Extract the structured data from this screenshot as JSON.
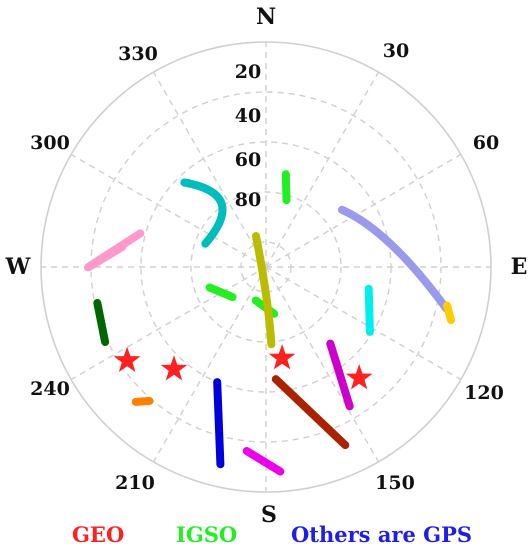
{
  "chart_data": {
    "type": "skyplot",
    "radial_axis": {
      "quantity": "elevation",
      "range": [
        0,
        90
      ],
      "tick_labels": [
        "20",
        "40",
        "60",
        "80"
      ]
    },
    "angular_axis": {
      "quantity": "azimuth",
      "cardinal_labels": [
        "N",
        "E",
        "S",
        "W"
      ],
      "tick_labels": [
        "30",
        "60",
        "120",
        "150",
        "210",
        "240",
        "300",
        "330"
      ]
    },
    "grid": true,
    "legend": [
      {
        "text": "GEO",
        "color": "#ff2020"
      },
      {
        "text": "IGSO",
        "color": "#22ee22"
      },
      {
        "text": "Others are GPS",
        "color": "#1e1ee6"
      }
    ],
    "tracks": [
      {
        "type": "GEO",
        "az": 236,
        "el": 23
      },
      {
        "type": "GEO",
        "az": 222,
        "el": 35
      },
      {
        "type": "GEO",
        "az": 170,
        "el": 53
      },
      {
        "type": "GEO",
        "az": 140,
        "el": 32
      },
      {
        "type": "IGSO",
        "color": "#22ee22",
        "points": [
          [
            17,
            62
          ],
          [
            12,
            52
          ]
        ]
      },
      {
        "type": "IGSO",
        "color": "#22ee22",
        "points": [
          [
            250,
            66
          ],
          [
            228,
            72
          ]
        ]
      },
      {
        "type": "IGSO",
        "color": "#22ee22",
        "points": [
          [
            170,
            71
          ],
          [
            197,
            76
          ]
        ]
      },
      {
        "type": "GPS",
        "color": "#ff99cc",
        "points": [
          [
            285,
            38
          ],
          [
            270,
            19
          ],
          [
            278,
            32
          ]
        ]
      },
      {
        "type": "GPS",
        "color": "#00bdbd",
        "points": [
          [
            316,
            43
          ],
          [
            325,
            59
          ],
          [
            291,
            64
          ]
        ]
      },
      {
        "type": "GPS",
        "color": "#bbbb00",
        "points": [
          [
            342,
            77
          ],
          [
            180,
            79
          ],
          [
            176,
            59
          ]
        ]
      },
      {
        "type": "GPS",
        "color": "#9999ee",
        "points": [
          [
            53,
            52
          ],
          [
            80,
            39
          ],
          [
            103,
            16
          ]
        ]
      },
      {
        "type": "GPS",
        "color": "#ffcc00",
        "points": [
          [
            102,
            16
          ],
          [
            106,
            13
          ]
        ]
      },
      {
        "type": "GPS",
        "color": "#00eeee",
        "points": [
          [
            102,
            48
          ],
          [
            122,
            41
          ]
        ]
      },
      {
        "type": "GPS",
        "color": "#006600",
        "points": [
          [
            258,
            21
          ],
          [
            245,
            19
          ]
        ]
      },
      {
        "type": "GPS",
        "color": "#ff7f00",
        "points": [
          [
            224,
            15
          ],
          [
            221,
            19
          ]
        ]
      },
      {
        "type": "GPS",
        "color": "#cc00cc",
        "points": [
          [
            140,
            50
          ],
          [
            149,
            25
          ]
        ]
      },
      {
        "type": "GPS",
        "color": "#ee00ee",
        "points": [
          [
            186,
            16
          ],
          [
            176,
            8
          ]
        ]
      },
      {
        "type": "GPS",
        "color": "#0000dd",
        "points": [
          [
            203,
            40
          ],
          [
            193,
            9
          ]
        ]
      },
      {
        "type": "GPS",
        "color": "#aa2200",
        "points": [
          [
            175,
            45
          ],
          [
            156,
            12
          ]
        ]
      }
    ]
  }
}
